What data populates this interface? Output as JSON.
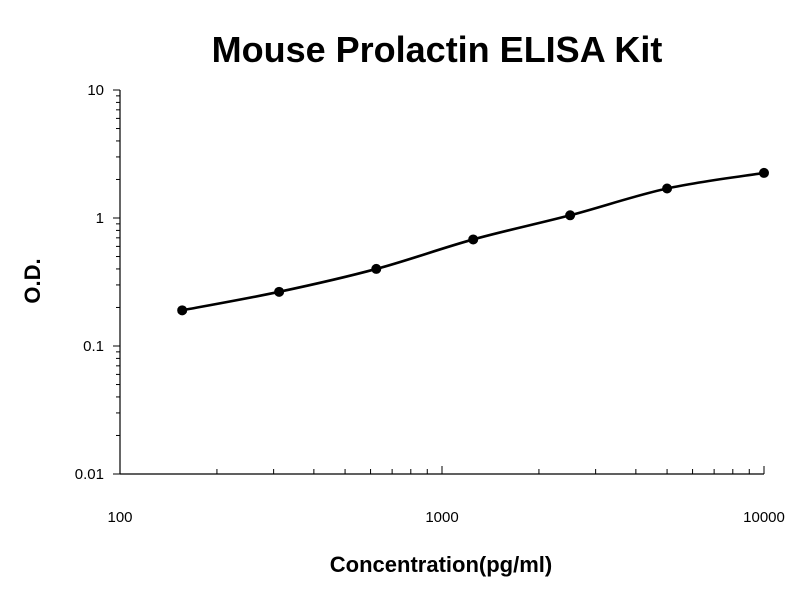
{
  "chart_data": {
    "type": "scatter",
    "title": "Mouse Prolactin ELISA Kit",
    "xlabel": "Concentration(pg/ml)",
    "ylabel": "O.D.",
    "x_scale": "log",
    "y_scale": "log",
    "xlim": [
      100,
      10000
    ],
    "ylim": [
      0.01,
      10
    ],
    "x_ticks": [
      100,
      1000,
      10000
    ],
    "x_tick_labels": [
      "100",
      "1000",
      "10000"
    ],
    "y_ticks": [
      0.01,
      0.1,
      1,
      10
    ],
    "y_tick_labels": [
      "0.01",
      "0.1",
      "1",
      "10"
    ],
    "grid": false,
    "series": [
      {
        "x": [
          156,
          312,
          625,
          1250,
          2500,
          5000,
          10000
        ],
        "y": [
          0.19,
          0.265,
          0.4,
          0.68,
          1.05,
          1.7,
          2.25
        ],
        "line": "smooth",
        "color": "#000000"
      }
    ]
  }
}
